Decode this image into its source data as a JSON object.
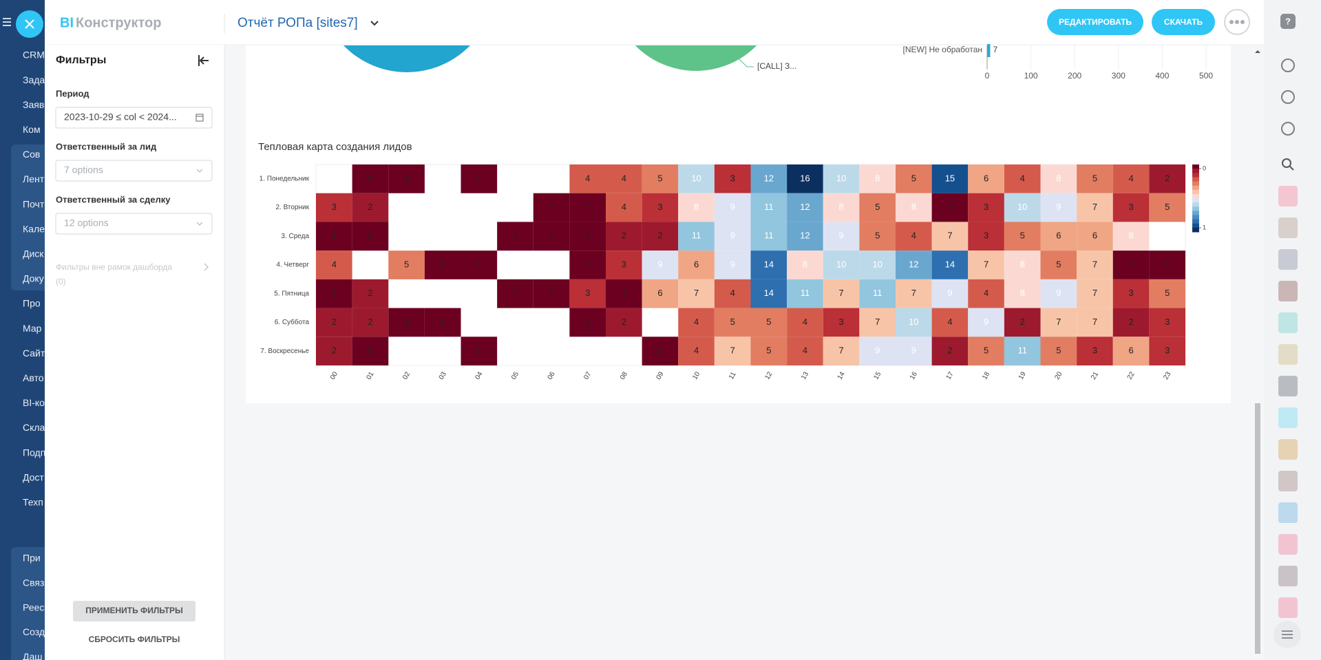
{
  "nav": [
    "CRM",
    "Зада",
    "Заяв",
    "Ком",
    "Сов",
    "Лент",
    "Почт",
    "Кале",
    "Диск",
    "Доку",
    "Про",
    "Мар",
    "Сайт",
    "Авто",
    "BI-ко",
    "Скла",
    "Подп",
    "Дост",
    "Техп",
    "При",
    "Связ",
    "Реес",
    "Созд",
    "Даш"
  ],
  "header": {
    "logo_bi": "BI",
    "logo_text": "Конструктор",
    "report_title": "Отчёт РОПа [sites7]",
    "edit_button": "РЕДАКТИРОВАТЬ",
    "download_button": "СКАЧАТЬ"
  },
  "filters": {
    "title": "Фильтры",
    "fields": [
      {
        "label": "Период",
        "value": "2023-10-29 ≤ col < 2024..."
      },
      {
        "label": "Ответственный за лид",
        "value": "7 options"
      },
      {
        "label": "Ответственный за сделку",
        "value": "12 options"
      }
    ],
    "outside": "Фильтры вне рамок дашборда",
    "outside_count": "(0)",
    "apply": "ПРИМЕНИТЬ ФИЛЬТРЫ",
    "reset": "СБРОСИТЬ ФИЛЬТРЫ"
  },
  "pie_label": "[CALL] З...",
  "chart_data": [
    {
      "type": "bar",
      "orientation": "horizontal",
      "categories": [
        "[NEW] Не обработан"
      ],
      "values": [
        7
      ],
      "color": "#2fa8d5",
      "xlim": [
        0,
        500
      ],
      "xticks": [
        0,
        100,
        200,
        300,
        400,
        500
      ],
      "grid": true
    },
    {
      "type": "heatmap",
      "title": "Тепловая карта создания лидов",
      "x": [
        "00",
        "01",
        "02",
        "03",
        "04",
        "05",
        "06",
        "07",
        "08",
        "09",
        "10",
        "11",
        "12",
        "13",
        "14",
        "15",
        "16",
        "17",
        "18",
        "19",
        "20",
        "21",
        "22",
        "23"
      ],
      "y": [
        "1. Понедельник",
        "2. Вторник",
        "3. Среда",
        "4. Четверг",
        "5. Пятница",
        "6. Суббота",
        "7. Воскресенье"
      ],
      "z": [
        [
          null,
          1,
          1,
          null,
          1,
          null,
          null,
          4,
          4,
          5,
          10,
          3,
          12,
          16,
          10,
          8,
          5,
          15,
          6,
          4,
          8,
          5,
          4,
          2
        ],
        [
          3,
          2,
          null,
          null,
          null,
          null,
          1,
          1,
          4,
          3,
          8,
          9,
          11,
          12,
          8,
          5,
          8,
          1,
          3,
          10,
          9,
          7,
          3,
          5
        ],
        [
          1,
          1,
          null,
          null,
          null,
          1,
          1,
          1,
          2,
          2,
          11,
          9,
          11,
          12,
          9,
          5,
          4,
          7,
          3,
          5,
          6,
          6,
          8,
          null
        ],
        [
          4,
          null,
          5,
          1,
          1,
          null,
          null,
          1,
          3,
          9,
          6,
          9,
          14,
          8,
          10,
          10,
          12,
          14,
          7,
          8,
          5,
          7,
          1,
          1
        ],
        [
          1,
          2,
          null,
          null,
          null,
          1,
          1,
          3,
          1,
          6,
          7,
          4,
          14,
          11,
          7,
          11,
          7,
          9,
          4,
          8,
          9,
          7,
          3,
          5
        ],
        [
          2,
          2,
          1,
          1,
          null,
          null,
          null,
          1,
          2,
          null,
          4,
          5,
          5,
          4,
          3,
          7,
          10,
          4,
          9,
          2,
          7,
          7,
          2,
          3
        ],
        [
          2,
          1,
          null,
          null,
          1,
          null,
          null,
          null,
          null,
          1,
          4,
          7,
          5,
          4,
          7,
          9,
          9,
          2,
          5,
          11,
          5,
          3,
          6,
          3
        ]
      ],
      "colorscale": [
        "#6b0020",
        "#9d1a2e",
        "#bb2f37",
        "#d45b4c",
        "#e27d61",
        "#f0a585",
        "#f8c4a8",
        "#fbd9d2",
        "#dde3f3",
        "#bcd9ea",
        "#92c5de",
        "#6aa7cf",
        "#4a8cc2",
        "#2e6faf",
        "#14508e",
        "#0b3060"
      ],
      "colorbar_ticks": [
        0,
        1
      ]
    }
  ]
}
